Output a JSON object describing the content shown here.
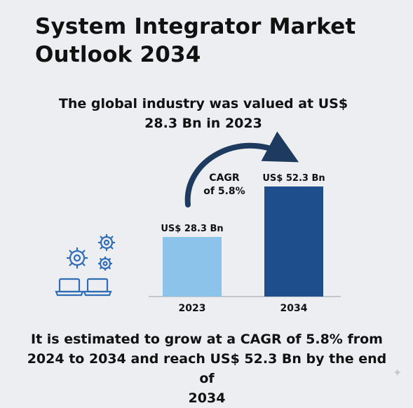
{
  "header": {
    "title_line1": "System Integrator Market",
    "title_line2": "Outlook 2034"
  },
  "subtitle": {
    "line1": "The global industry was valued at US$",
    "line2": "28.3 Bn in 2023"
  },
  "footer": {
    "line1": "It is estimated to grow at a CAGR of 5.8% from",
    "line2": "2024 to 2034 and reach US$ 52.3 Bn by the end of",
    "line3": "2034"
  },
  "chart_data": {
    "type": "bar",
    "categories": [
      "2023",
      "2034"
    ],
    "values": [
      28.3,
      52.3
    ],
    "data_labels": [
      "US$ 28.3 Bn",
      "US$ 52.3 Bn"
    ],
    "colors": [
      "#8cc3ea",
      "#1f4e8c"
    ],
    "annotation": {
      "line1": "CAGR",
      "line2": "of 5.8%"
    },
    "unit": "US$ Bn"
  },
  "colors": {
    "background": "#eceef1",
    "icon": "#2f6db5",
    "arrow": "#1e3a5f",
    "axis": "#9aa0a6"
  },
  "icons": [
    "gears-icon",
    "laptop-icon",
    "sparkle-icon"
  ]
}
